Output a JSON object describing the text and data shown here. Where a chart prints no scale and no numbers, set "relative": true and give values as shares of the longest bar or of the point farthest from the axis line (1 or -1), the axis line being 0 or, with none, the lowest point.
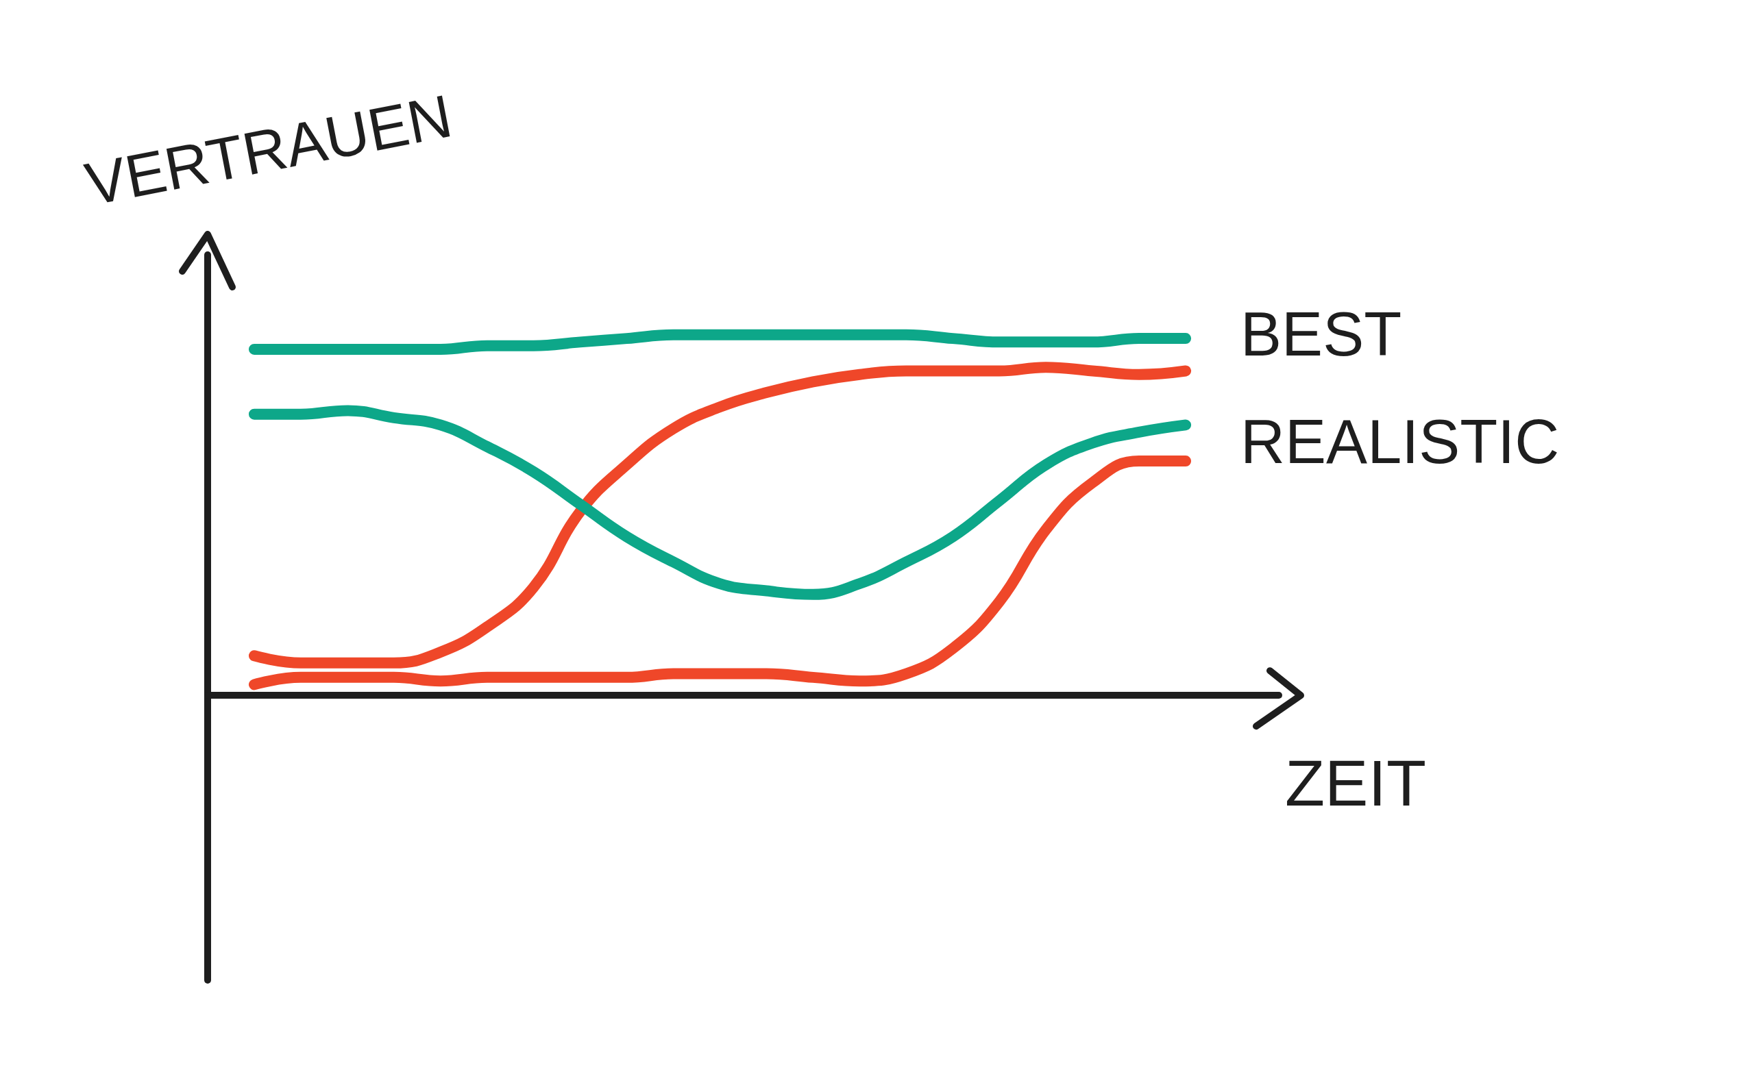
{
  "chart_data": {
    "type": "line",
    "xlabel": "ZEIT",
    "ylabel": "VERTRAUEN",
    "relative": true,
    "line_style": "solid",
    "categories": [
      null,
      null,
      null,
      null,
      null,
      null,
      null,
      null,
      null,
      null,
      null,
      null,
      null,
      null,
      null,
      null,
      null,
      null,
      null,
      null,
      null,
      null,
      null,
      null
    ],
    "series": [
      {
        "color": "#0da789",
        "values": [
          null,
          0.96,
          0.96,
          0.96,
          0.96,
          0.96,
          0.97,
          0.97,
          0.98,
          0.99,
          1.0,
          1.0,
          1.0,
          1.0,
          1.0,
          1.0,
          0.99,
          0.98,
          0.98,
          0.98,
          0.99,
          0.99,
          null,
          null
        ]
      },
      {
        "color": "#ef4729",
        "values": [
          null,
          0.11,
          0.09,
          0.09,
          0.09,
          0.12,
          0.19,
          0.3,
          0.51,
          0.64,
          0.74,
          0.8,
          0.84,
          0.87,
          0.89,
          0.9,
          0.9,
          0.9,
          0.91,
          0.9,
          0.89,
          0.9,
          null,
          null
        ]
      },
      {
        "color": "#0da789",
        "values": [
          null,
          0.78,
          0.78,
          0.79,
          0.77,
          0.75,
          0.69,
          0.62,
          0.53,
          0.44,
          0.37,
          0.31,
          0.29,
          0.28,
          0.31,
          0.37,
          0.44,
          0.54,
          0.64,
          0.7,
          0.73,
          0.75,
          null,
          null
        ]
      },
      {
        "color": "#ef4729",
        "values": [
          null,
          0.03,
          0.05,
          0.05,
          0.05,
          0.04,
          0.05,
          0.05,
          0.05,
          0.05,
          0.06,
          0.06,
          0.06,
          0.05,
          0.04,
          0.06,
          0.13,
          0.26,
          0.46,
          0.59,
          0.65,
          0.65,
          null,
          null
        ]
      }
    ],
    "annotations": [
      "BEST",
      "REALISTIC"
    ]
  }
}
